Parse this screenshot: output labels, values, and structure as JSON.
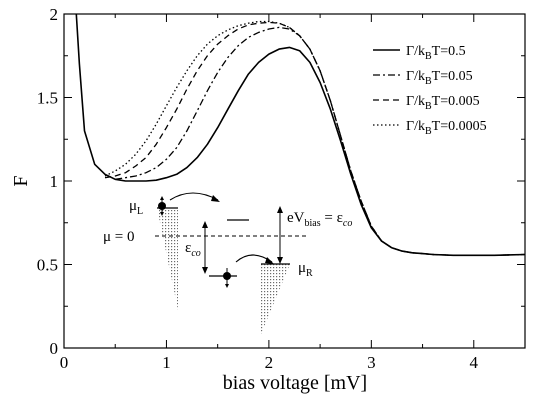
{
  "chart_data": {
    "type": "line",
    "title": "",
    "xlabel": "bias voltage [mV]",
    "ylabel": "F",
    "xlim": [
      0,
      4.5
    ],
    "ylim": [
      0,
      2
    ],
    "xticks": [
      0,
      1,
      2,
      3,
      4
    ],
    "yticks": [
      0,
      0.5,
      1,
      1.5,
      2
    ],
    "xtick_labels": [
      "0",
      "1",
      "2",
      "3",
      "4"
    ],
    "ytick_labels": [
      "0",
      "0.5",
      "1",
      "1.5",
      "2"
    ],
    "grid": false,
    "legend_position": "top-right",
    "series": [
      {
        "name": "Γ/kBT=0.5",
        "legend_parts": [
          "Γ/k",
          "B",
          "T=0.5"
        ],
        "dash": "solid",
        "x": [
          0.12,
          0.15,
          0.2,
          0.3,
          0.4,
          0.5,
          0.6,
          0.7,
          0.8,
          0.9,
          1.0,
          1.1,
          1.2,
          1.3,
          1.4,
          1.5,
          1.6,
          1.7,
          1.8,
          1.9,
          2.0,
          2.1,
          2.2,
          2.3,
          2.4,
          2.5,
          2.6,
          2.7,
          2.8,
          2.9,
          3.0,
          3.1,
          3.2,
          3.3,
          3.4,
          3.5,
          3.6,
          3.8,
          4.0,
          4.2,
          4.5
        ],
        "y": [
          2.0,
          1.7,
          1.3,
          1.1,
          1.04,
          1.01,
          1.0,
          1.0,
          1.0,
          1.005,
          1.02,
          1.04,
          1.08,
          1.14,
          1.22,
          1.32,
          1.43,
          1.54,
          1.64,
          1.71,
          1.76,
          1.79,
          1.8,
          1.78,
          1.71,
          1.59,
          1.43,
          1.24,
          1.04,
          0.86,
          0.72,
          0.64,
          0.6,
          0.58,
          0.57,
          0.565,
          0.56,
          0.555,
          0.555,
          0.555,
          0.56
        ]
      },
      {
        "name": "Γ/kBT=0.05",
        "legend_parts": [
          "Γ/k",
          "B",
          "T=0.05"
        ],
        "dash": "dashdot",
        "x": [
          0.5,
          0.6,
          0.7,
          0.8,
          0.9,
          1.0,
          1.1,
          1.2,
          1.3,
          1.4,
          1.5,
          1.6,
          1.7,
          1.8,
          1.9,
          2.0,
          2.1,
          2.2,
          2.3,
          2.4,
          2.5,
          2.6,
          2.7,
          2.8,
          2.9,
          3.0,
          3.1,
          3.2,
          3.3,
          3.4,
          3.5,
          3.6,
          3.8,
          4.0,
          4.2,
          4.5
        ],
        "y": [
          1.01,
          1.02,
          1.03,
          1.05,
          1.08,
          1.13,
          1.2,
          1.3,
          1.42,
          1.54,
          1.65,
          1.74,
          1.81,
          1.86,
          1.89,
          1.91,
          1.92,
          1.91,
          1.87,
          1.79,
          1.66,
          1.48,
          1.27,
          1.06,
          0.88,
          0.73,
          0.64,
          0.6,
          0.58,
          0.57,
          0.565,
          0.56,
          0.555,
          0.555,
          0.555,
          0.56
        ]
      },
      {
        "name": "Γ/kBT=0.005",
        "legend_parts": [
          "Γ/k",
          "B",
          "T=0.005"
        ],
        "dash": "dashed",
        "x": [
          0.4,
          0.5,
          0.6,
          0.7,
          0.8,
          0.9,
          1.0,
          1.1,
          1.2,
          1.3,
          1.4,
          1.5,
          1.6,
          1.7,
          1.8,
          1.9,
          2.0,
          2.1,
          2.2,
          2.3,
          2.4,
          2.5,
          2.6,
          2.7,
          2.8,
          2.9,
          3.0,
          3.1,
          3.2,
          3.3,
          3.4,
          3.5,
          3.6,
          3.8,
          4.0,
          4.2,
          4.5
        ],
        "y": [
          1.02,
          1.03,
          1.05,
          1.09,
          1.14,
          1.22,
          1.32,
          1.43,
          1.55,
          1.66,
          1.75,
          1.82,
          1.87,
          1.91,
          1.935,
          1.945,
          1.95,
          1.945,
          1.92,
          1.87,
          1.79,
          1.66,
          1.48,
          1.27,
          1.06,
          0.88,
          0.73,
          0.64,
          0.6,
          0.58,
          0.57,
          0.565,
          0.56,
          0.555,
          0.555,
          0.555,
          0.56
        ]
      },
      {
        "name": "Γ/kBT=0.0005",
        "legend_parts": [
          "Γ/k",
          "B",
          "T=0.0005"
        ],
        "dash": "dotted",
        "x": [
          0.4,
          0.5,
          0.6,
          0.7,
          0.8,
          0.9,
          1.0,
          1.1,
          1.2,
          1.3,
          1.4,
          1.5,
          1.6,
          1.7,
          1.8,
          1.9,
          2.0,
          2.1,
          2.2,
          2.3,
          2.4,
          2.5,
          2.6,
          2.7,
          2.8,
          2.9,
          3.0,
          3.1,
          3.2,
          3.3,
          3.4,
          3.5,
          3.6,
          3.8,
          4.0,
          4.2,
          4.5
        ],
        "y": [
          1.03,
          1.06,
          1.1,
          1.16,
          1.24,
          1.34,
          1.45,
          1.56,
          1.66,
          1.75,
          1.82,
          1.87,
          1.905,
          1.93,
          1.945,
          1.955,
          1.955,
          1.945,
          1.92,
          1.87,
          1.79,
          1.66,
          1.48,
          1.27,
          1.06,
          0.88,
          0.73,
          0.64,
          0.6,
          0.58,
          0.57,
          0.565,
          0.56,
          0.555,
          0.555,
          0.555,
          0.56
        ]
      }
    ],
    "inset": {
      "mu_left": [
        "μ",
        "L"
      ],
      "mu_right": [
        "μ",
        "R"
      ],
      "mu_zero": "μ = 0",
      "epsilon_co": [
        "ε",
        "co"
      ],
      "bias_label": [
        "eV",
        "bias",
        " = ε",
        "co"
      ]
    }
  }
}
